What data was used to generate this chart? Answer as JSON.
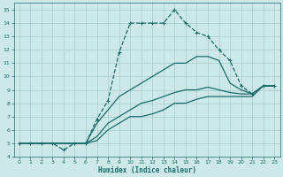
{
  "xlabel": "Humidex (Indice chaleur)",
  "bg_color": "#cce8e8",
  "grid_color": "#aacccc",
  "line_color": "#1a6b6b",
  "xlim": [
    -0.5,
    23.5
  ],
  "ylim": [
    4,
    15.5
  ],
  "xticks": [
    0,
    1,
    2,
    3,
    4,
    5,
    6,
    7,
    8,
    9,
    10,
    11,
    12,
    13,
    14,
    15,
    16,
    17,
    18,
    19,
    20,
    21,
    22,
    23
  ],
  "yticks": [
    4,
    5,
    6,
    7,
    8,
    9,
    10,
    11,
    12,
    13,
    14,
    15
  ],
  "series": [
    {
      "x": [
        0,
        1,
        2,
        3,
        4,
        5,
        6,
        7,
        8,
        9,
        10,
        11,
        12,
        13,
        14,
        15,
        16,
        17,
        18,
        19,
        20,
        21,
        22,
        23
      ],
      "y": [
        5,
        5,
        5,
        5,
        4.5,
        5,
        5,
        6.8,
        8.2,
        11.8,
        14,
        14,
        14,
        14,
        15,
        14,
        13.3,
        13,
        12,
        11.2,
        9.3,
        8.7,
        9.3,
        9.3
      ],
      "marker": "+",
      "linestyle": "--",
      "lw": 0.9
    },
    {
      "x": [
        0,
        1,
        2,
        3,
        4,
        5,
        6,
        7,
        8,
        9,
        10,
        11,
        12,
        13,
        14,
        15,
        16,
        17,
        18,
        19,
        20,
        21,
        22,
        23
      ],
      "y": [
        5,
        5,
        5,
        5,
        5,
        5,
        5,
        6.5,
        7.5,
        8.5,
        9,
        9.5,
        10,
        10.5,
        11,
        11,
        11.5,
        11.5,
        11.2,
        9.5,
        9,
        8.7,
        9.3,
        9.3
      ],
      "marker": null,
      "linestyle": "-",
      "lw": 0.9
    },
    {
      "x": [
        0,
        1,
        2,
        3,
        4,
        5,
        6,
        7,
        8,
        9,
        10,
        11,
        12,
        13,
        14,
        15,
        16,
        17,
        18,
        19,
        20,
        21,
        22,
        23
      ],
      "y": [
        5,
        5,
        5,
        5,
        5,
        5,
        5,
        5.5,
        6.5,
        7,
        7.5,
        8,
        8.2,
        8.5,
        8.8,
        9,
        9,
        9.2,
        9,
        8.8,
        8.7,
        8.7,
        9.3,
        9.3
      ],
      "marker": null,
      "linestyle": "-",
      "lw": 0.9
    },
    {
      "x": [
        0,
        1,
        2,
        3,
        4,
        5,
        6,
        7,
        8,
        9,
        10,
        11,
        12,
        13,
        14,
        15,
        16,
        17,
        18,
        19,
        20,
        21,
        22,
        23
      ],
      "y": [
        5,
        5,
        5,
        5,
        5,
        5,
        5,
        5.2,
        6,
        6.5,
        7,
        7,
        7.2,
        7.5,
        8,
        8,
        8.3,
        8.5,
        8.5,
        8.5,
        8.5,
        8.5,
        9.3,
        9.3
      ],
      "marker": null,
      "linestyle": "-",
      "lw": 0.9
    }
  ]
}
